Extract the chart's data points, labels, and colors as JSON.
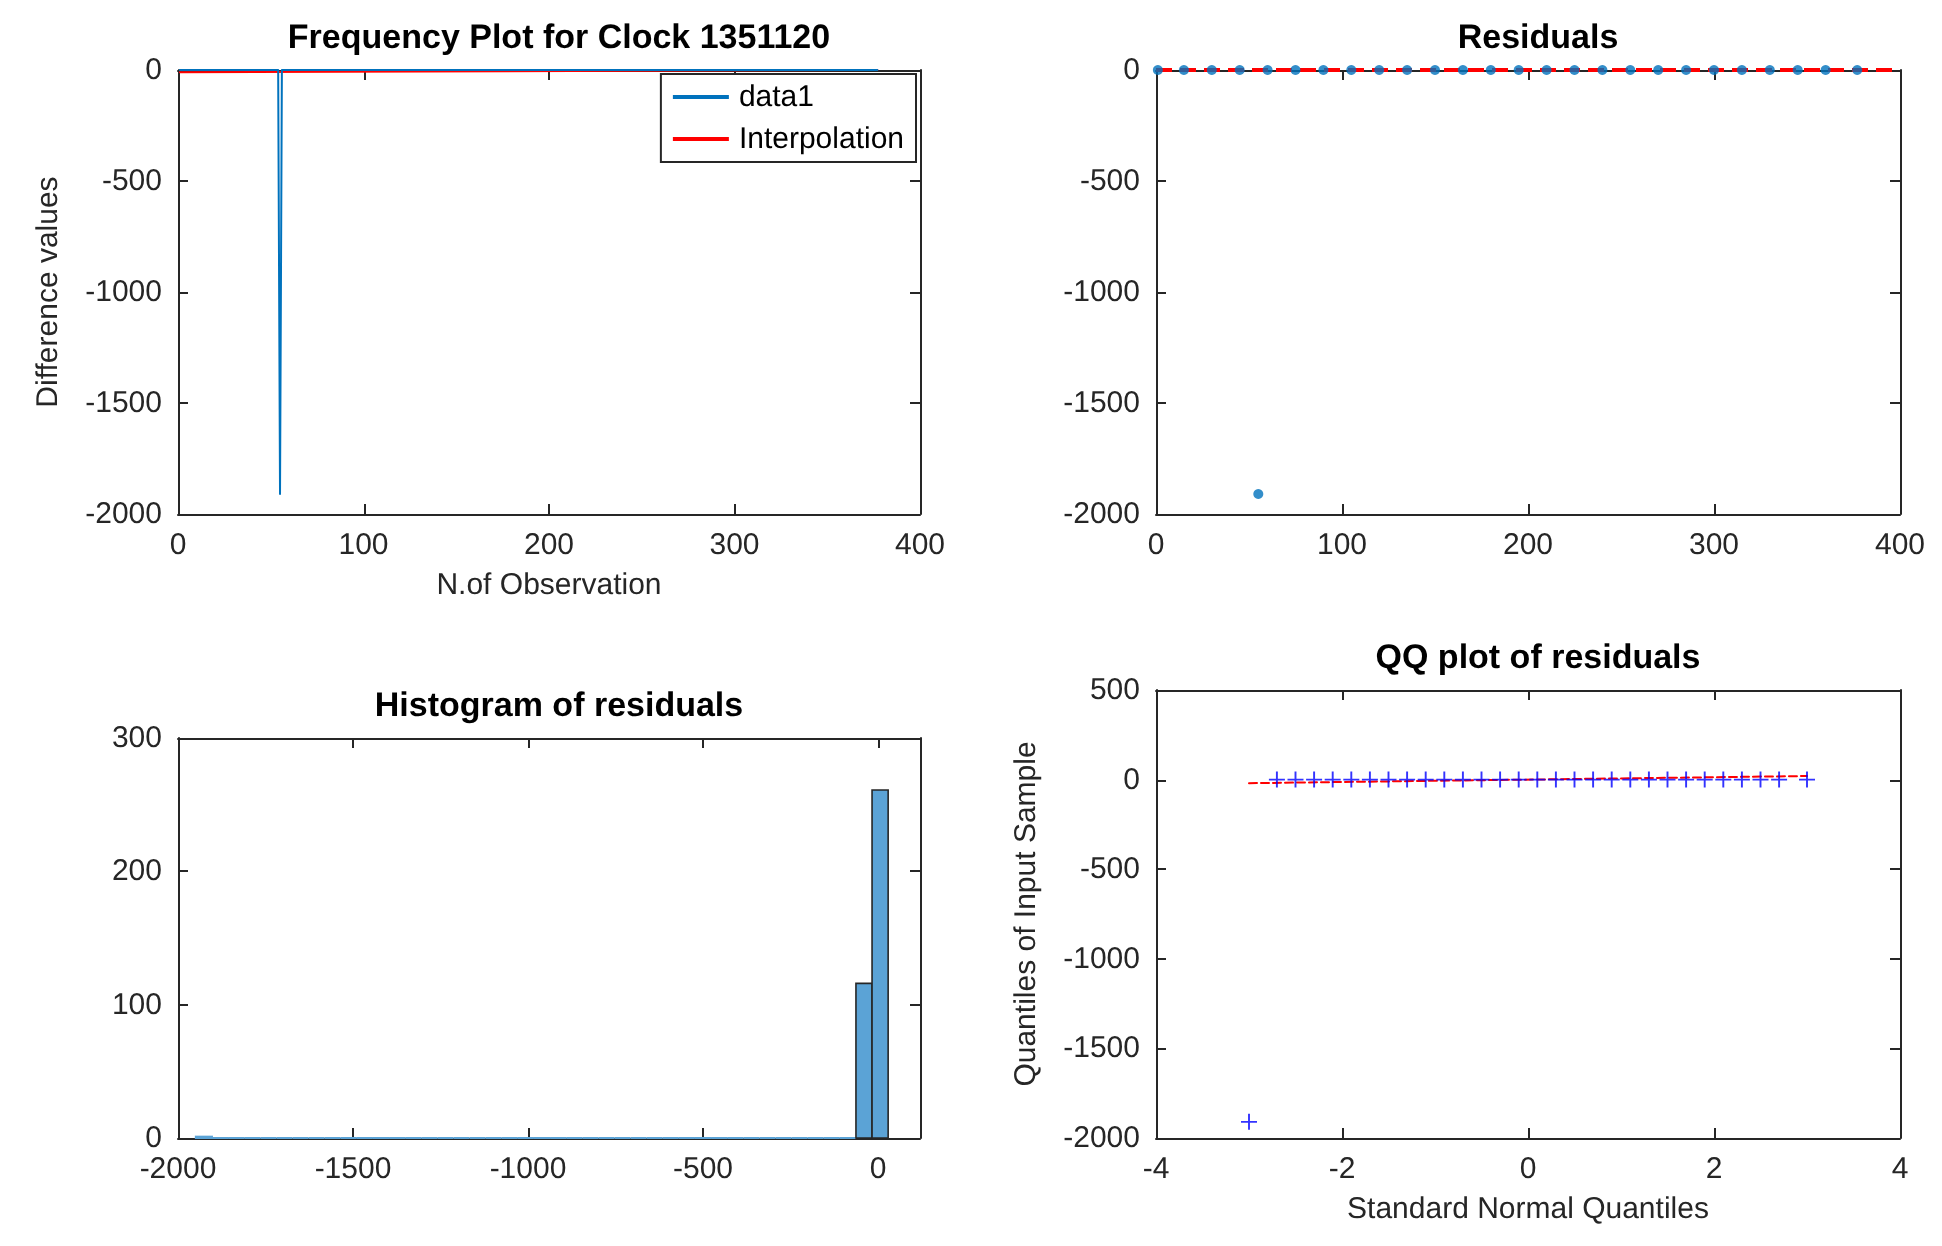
{
  "chart_data": [
    {
      "type": "line",
      "title": "Frequency Plot for Clock 1351120",
      "xlabel": "N.of Observation",
      "ylabel": "Difference values",
      "xlim": [
        0,
        400
      ],
      "xticks": [
        0,
        100,
        200,
        300,
        400
      ],
      "ylim": [
        -2000,
        0
      ],
      "yticks": [
        -2000,
        -1500,
        -1000,
        -500,
        0
      ],
      "grid": false,
      "legend": "top right",
      "marker": "none",
      "series": [
        {
          "name": "data1",
          "color": "#0072bd",
          "x": [
            1,
            10,
            20,
            30,
            40,
            50,
            53,
            54,
            55,
            56,
            57,
            60,
            80,
            100,
            120,
            140,
            160,
            180,
            200,
            220,
            240,
            260,
            280,
            300,
            320,
            340,
            360,
            377
          ],
          "values": [
            0,
            0,
            0,
            0,
            0,
            0,
            0,
            0,
            -1910,
            0,
            0,
            0,
            0,
            0,
            0,
            0,
            0,
            0,
            0,
            0,
            0,
            0,
            0,
            0,
            0,
            0,
            0,
            0
          ]
        },
        {
          "name": "Interpolation",
          "color": "#ff0000",
          "x": [
            1,
            377
          ],
          "values": [
            -10,
            0
          ]
        }
      ]
    },
    {
      "type": "scatter",
      "title": "Residuals",
      "xlim": [
        0,
        400
      ],
      "xticks": [
        0,
        100,
        200,
        300,
        400
      ],
      "ylim": [
        -2000,
        0
      ],
      "yticks": [
        -2000,
        -1500,
        -1000,
        -500,
        0
      ],
      "grid": false,
      "legend": false,
      "marker": "circle",
      "ref_lines": [
        {
          "axis": "y",
          "value": 0,
          "color": "#ff0000",
          "line_style": "dashed"
        }
      ],
      "series": [
        {
          "color": "#0072bd",
          "x": [
            1,
            15,
            30,
            45,
            55,
            60,
            75,
            90,
            105,
            120,
            135,
            150,
            165,
            180,
            195,
            210,
            225,
            240,
            255,
            270,
            285,
            300,
            315,
            330,
            345,
            360,
            377
          ],
          "values": [
            0,
            0,
            0,
            0,
            -1910,
            0,
            0,
            0,
            0,
            0,
            0,
            0,
            0,
            0,
            0,
            0,
            0,
            0,
            0,
            0,
            0,
            0,
            0,
            0,
            0,
            0,
            0
          ]
        }
      ]
    },
    {
      "type": "histogram",
      "title": "Histogram of residuals",
      "xlim": [
        -2000,
        120
      ],
      "xticks": [
        -2000,
        -1500,
        -1000,
        -500,
        0
      ],
      "ylim": [
        0,
        300
      ],
      "yticks": [
        0,
        100,
        200,
        300
      ],
      "grid": false,
      "legend": false,
      "color": "#5ba3d6",
      "bins": [
        -1949,
        -1903,
        -1857,
        -1811,
        -1765,
        -1719,
        -1673,
        -1627,
        -1581,
        -1535,
        -1489,
        -1443,
        -1397,
        -1351,
        -1305,
        -1259,
        -1213,
        -1167,
        -1121,
        -1075,
        -1029,
        -983,
        -937,
        -891,
        -845,
        -799,
        -753,
        -707,
        -661,
        -615,
        -569,
        -523,
        -477,
        -431,
        -385,
        -339,
        -293,
        -247,
        -201,
        -155,
        -109,
        -63,
        -17,
        29
      ],
      "values": [
        1,
        0,
        0,
        0,
        0,
        0,
        0,
        0,
        0,
        0,
        0,
        0,
        0,
        0,
        0,
        0,
        0,
        0,
        0,
        0,
        0,
        0,
        0,
        0,
        0,
        0,
        0,
        0,
        0,
        0,
        0,
        0,
        0,
        0,
        0,
        0,
        0,
        0,
        0,
        0,
        0,
        116,
        261
      ]
    },
    {
      "type": "scatter",
      "title": "QQ plot of residuals",
      "xlabel": "Standard Normal Quantiles",
      "ylabel": "Quantiles of Input Sample",
      "xlim": [
        -4,
        4
      ],
      "xticks": [
        -4,
        -2,
        0,
        2,
        4
      ],
      "ylim": [
        -2000,
        500
      ],
      "yticks": [
        -2000,
        -1500,
        -1000,
        -500,
        0,
        500
      ],
      "grid": false,
      "legend": false,
      "marker": "cross",
      "series": [
        {
          "color": "#0000ff",
          "x": [
            -3,
            -2.7,
            -2.5,
            -2.3,
            -2.1,
            -1.9,
            -1.7,
            -1.5,
            -1.3,
            -1.1,
            -0.9,
            -0.7,
            -0.5,
            -0.3,
            -0.1,
            0.1,
            0.3,
            0.5,
            0.7,
            0.9,
            1.1,
            1.3,
            1.5,
            1.7,
            1.9,
            2.1,
            2.3,
            2.5,
            2.7,
            3
          ],
          "values": [
            -1910,
            0,
            0,
            0,
            0,
            0,
            0,
            0,
            0,
            0,
            0,
            0,
            0,
            0,
            0,
            0,
            0,
            0,
            0,
            0,
            0,
            0,
            0,
            0,
            0,
            0,
            0,
            0,
            0,
            0
          ]
        },
        {
          "type": "line",
          "color": "#ff0000",
          "line_style": "dashed",
          "marker": "none",
          "x": [
            -3,
            3
          ],
          "values": [
            -20,
            20
          ]
        }
      ]
    }
  ]
}
